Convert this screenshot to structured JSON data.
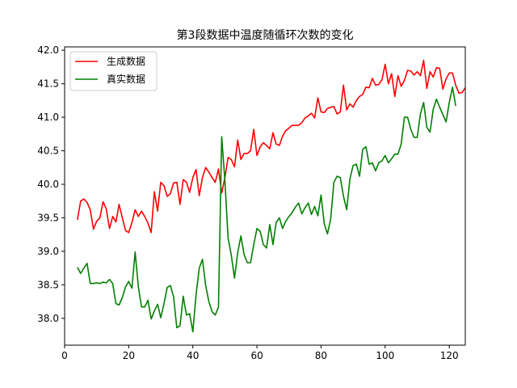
{
  "chart_data": {
    "type": "line",
    "title": "第3段数据中温度随循环次数的变化",
    "xlabel": "",
    "ylabel": "",
    "xlim": [
      0,
      125
    ],
    "ylim": [
      37.6,
      42.05
    ],
    "xticks": [
      0,
      20,
      40,
      60,
      80,
      100,
      120
    ],
    "yticks": [
      38.0,
      38.5,
      39.0,
      39.5,
      40.0,
      40.5,
      41.0,
      41.5,
      42.0
    ],
    "xtick_labels": [
      "0",
      "20",
      "40",
      "60",
      "80",
      "100",
      "120"
    ],
    "ytick_labels": [
      "38.0",
      "38.5",
      "39.0",
      "39.5",
      "40.0",
      "40.5",
      "41.0",
      "41.5",
      "42.0"
    ],
    "grid": false,
    "legend_position": "upper-left",
    "x_start": 4,
    "series": [
      {
        "name": "生成数据",
        "color": "#ff0000",
        "values": [
          39.47,
          39.75,
          39.78,
          39.73,
          39.62,
          39.33,
          39.45,
          39.5,
          39.74,
          39.63,
          39.34,
          39.52,
          39.44,
          39.7,
          39.5,
          39.31,
          39.28,
          39.43,
          39.62,
          39.52,
          39.6,
          39.52,
          39.42,
          39.28,
          39.89,
          39.6,
          40.03,
          39.98,
          39.82,
          39.86,
          40.02,
          40.03,
          39.7,
          40.07,
          40.03,
          39.88,
          40.1,
          40.22,
          39.83,
          40.1,
          40.25,
          40.18,
          40.1,
          40.03,
          40.23,
          39.87,
          40.1,
          40.4,
          40.37,
          40.26,
          40.66,
          40.37,
          40.46,
          40.46,
          40.5,
          40.82,
          40.43,
          40.56,
          40.62,
          40.58,
          40.53,
          40.77,
          40.6,
          40.58,
          40.72,
          40.8,
          40.84,
          40.88,
          40.88,
          40.88,
          40.92,
          40.99,
          41.02,
          41.06,
          40.99,
          41.29,
          41.08,
          41.07,
          41.13,
          41.15,
          41.16,
          41.05,
          41.08,
          41.48,
          41.11,
          41.2,
          41.15,
          41.25,
          41.31,
          41.34,
          41.45,
          41.44,
          41.58,
          41.48,
          41.49,
          41.56,
          41.79,
          41.5,
          41.65,
          41.31,
          41.62,
          41.46,
          41.55,
          41.7,
          41.69,
          41.63,
          41.68,
          41.62,
          41.85,
          41.43,
          41.68,
          41.6,
          41.74,
          41.73,
          41.42,
          41.57,
          41.66,
          41.66,
          41.48,
          41.36,
          41.37,
          41.44
        ]
      },
      {
        "name": "真实数据",
        "color": "#008000",
        "values": [
          38.76,
          38.67,
          38.75,
          38.82,
          38.52,
          38.52,
          38.53,
          38.52,
          38.54,
          38.53,
          38.58,
          38.52,
          38.22,
          38.2,
          38.31,
          38.47,
          38.55,
          38.45,
          38.99,
          38.47,
          38.17,
          38.17,
          38.27,
          37.99,
          38.11,
          38.21,
          38.01,
          38.22,
          38.46,
          38.49,
          38.32,
          37.86,
          37.89,
          38.33,
          38.05,
          38.07,
          37.8,
          38.35,
          38.75,
          38.88,
          38.49,
          38.25,
          38.1,
          38.05,
          38.17,
          40.71,
          40.05,
          39.2,
          38.94,
          38.6,
          38.98,
          39.23,
          38.95,
          38.83,
          38.83,
          39.1,
          39.34,
          39.3,
          39.1,
          39.05,
          39.4,
          39.1,
          39.43,
          39.5,
          39.34,
          39.45,
          39.52,
          39.58,
          39.66,
          39.72,
          39.56,
          39.65,
          39.72,
          39.55,
          39.67,
          39.53,
          39.84,
          39.41,
          39.26,
          39.48,
          40.03,
          40.12,
          40.1,
          39.82,
          39.62,
          40.08,
          40.28,
          40.3,
          40.12,
          40.52,
          40.56,
          40.3,
          40.32,
          40.2,
          40.32,
          40.35,
          40.43,
          40.32,
          40.38,
          40.45,
          40.45,
          40.6,
          41.0,
          41.0,
          40.82,
          40.7,
          40.7,
          41.05,
          41.22,
          40.85,
          40.78,
          41.12,
          41.27,
          41.15,
          41.04,
          40.93,
          41.22,
          41.45,
          41.17
        ]
      }
    ]
  }
}
